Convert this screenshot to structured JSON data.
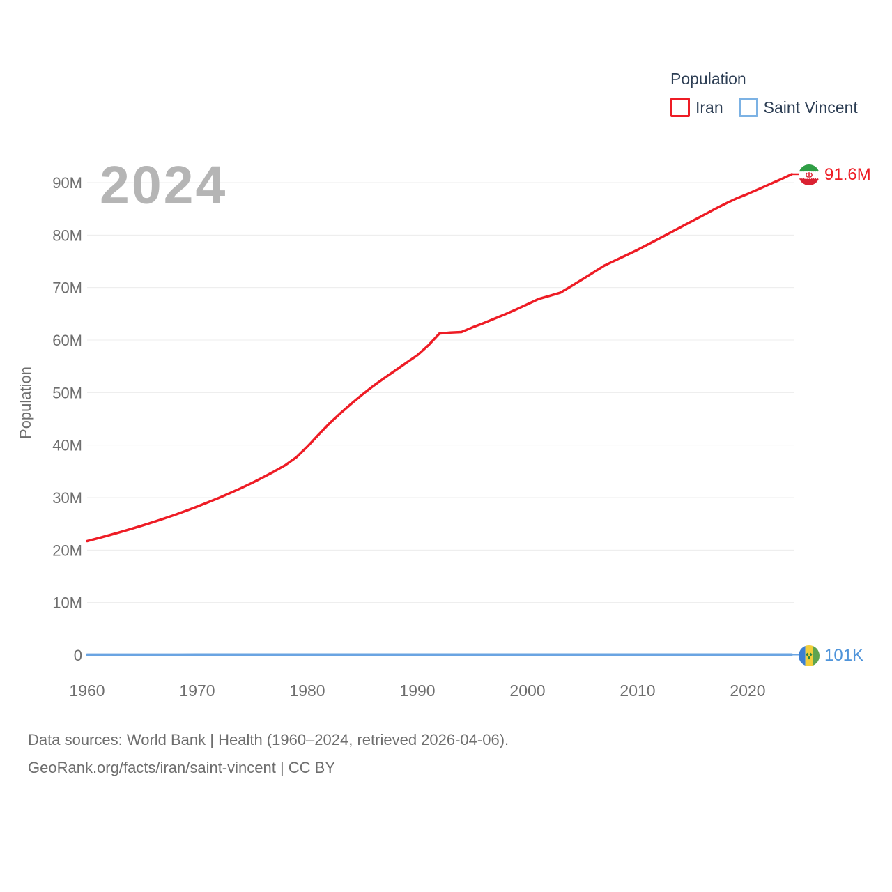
{
  "legend": {
    "title": "Population",
    "items": [
      {
        "label": "Iran",
        "color": "#ee1c25"
      },
      {
        "label": "Saint Vincent",
        "color": "#7cb2e4"
      }
    ]
  },
  "watermark_year": "2024",
  "chart_data": {
    "type": "line",
    "title": "Population",
    "xlabel": "",
    "ylabel": "Population",
    "x_range": [
      1960,
      2024
    ],
    "ylim_millions": [
      0,
      90
    ],
    "grid": true,
    "legend_position": "top-right",
    "y_ticks": [
      {
        "value": 0,
        "label": "0"
      },
      {
        "value": 10,
        "label": "10M"
      },
      {
        "value": 20,
        "label": "20M"
      },
      {
        "value": 30,
        "label": "30M"
      },
      {
        "value": 40,
        "label": "40M"
      },
      {
        "value": 50,
        "label": "50M"
      },
      {
        "value": 60,
        "label": "60M"
      },
      {
        "value": 70,
        "label": "70M"
      },
      {
        "value": 80,
        "label": "80M"
      },
      {
        "value": 90,
        "label": "90M"
      }
    ],
    "x_ticks": [
      "1960",
      "1970",
      "1980",
      "1990",
      "2000",
      "2010",
      "2020"
    ],
    "series": [
      {
        "name": "Iran",
        "color": "#ee1c25",
        "label_color": "#ee1c25",
        "end_label": "91.6M",
        "flag_icon": "iran-flag-icon",
        "points_year_millions": [
          [
            1960,
            21.7
          ],
          [
            1961,
            22.26
          ],
          [
            1962,
            22.83
          ],
          [
            1963,
            23.42
          ],
          [
            1964,
            24.04
          ],
          [
            1965,
            24.67
          ],
          [
            1966,
            25.33
          ],
          [
            1967,
            26.02
          ],
          [
            1968,
            26.74
          ],
          [
            1969,
            27.49
          ],
          [
            1970,
            28.29
          ],
          [
            1971,
            29.12
          ],
          [
            1972,
            29.98
          ],
          [
            1973,
            30.88
          ],
          [
            1974,
            31.82
          ],
          [
            1975,
            32.81
          ],
          [
            1976,
            33.87
          ],
          [
            1977,
            34.99
          ],
          [
            1978,
            36.17
          ],
          [
            1979,
            37.67
          ],
          [
            1980,
            39.71
          ],
          [
            1981,
            41.94
          ],
          [
            1982,
            44.11
          ],
          [
            1983,
            46.05
          ],
          [
            1984,
            47.88
          ],
          [
            1985,
            49.63
          ],
          [
            1986,
            51.27
          ],
          [
            1987,
            52.78
          ],
          [
            1988,
            54.23
          ],
          [
            1989,
            55.67
          ],
          [
            1990,
            57.12
          ],
          [
            1991,
            59.0
          ],
          [
            1992,
            61.25
          ],
          [
            1993,
            61.44
          ],
          [
            1994,
            61.52
          ],
          [
            1995,
            62.42
          ],
          [
            1996,
            63.23
          ],
          [
            1997,
            64.07
          ],
          [
            1998,
            64.95
          ],
          [
            1999,
            65.87
          ],
          [
            2000,
            66.84
          ],
          [
            2001,
            67.82
          ],
          [
            2002,
            68.41
          ],
          [
            2003,
            69.04
          ],
          [
            2004,
            70.3
          ],
          [
            2005,
            71.6
          ],
          [
            2006,
            72.9
          ],
          [
            2007,
            74.22
          ],
          [
            2008,
            75.21
          ],
          [
            2009,
            76.2
          ],
          [
            2010,
            77.2
          ],
          [
            2011,
            78.29
          ],
          [
            2012,
            79.39
          ],
          [
            2013,
            80.5
          ],
          [
            2014,
            81.61
          ],
          [
            2015,
            82.72
          ],
          [
            2016,
            83.83
          ],
          [
            2017,
            84.94
          ],
          [
            2018,
            86.0
          ],
          [
            2019,
            87.0
          ],
          [
            2020,
            87.85
          ],
          [
            2021,
            88.76
          ],
          [
            2022,
            89.69
          ],
          [
            2023,
            90.61
          ],
          [
            2024,
            91.6
          ]
        ]
      },
      {
        "name": "Saint Vincent",
        "color": "#6aa4e2",
        "label_color": "#4f94da",
        "end_label": "101K",
        "flag_icon": "saint-vincent-flag-icon",
        "points_year_millions": [
          [
            1960,
            0.081
          ],
          [
            1965,
            0.085
          ],
          [
            1970,
            0.09
          ],
          [
            1975,
            0.094
          ],
          [
            1980,
            0.098
          ],
          [
            1985,
            0.102
          ],
          [
            1990,
            0.106
          ],
          [
            1995,
            0.108
          ],
          [
            2000,
            0.109
          ],
          [
            2005,
            0.109
          ],
          [
            2010,
            0.109
          ],
          [
            2015,
            0.107
          ],
          [
            2020,
            0.104
          ],
          [
            2024,
            0.101
          ]
        ]
      }
    ]
  },
  "footer": {
    "line1": "Data sources: World Bank | Health (1960–2024, retrieved 2026-04-06).",
    "line2": "GeoRank.org/facts/iran/saint-vincent | CC BY"
  }
}
